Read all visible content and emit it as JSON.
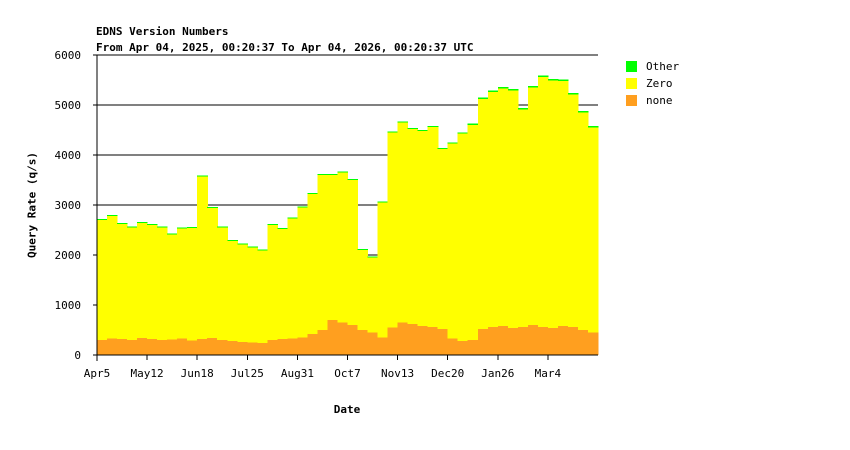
{
  "chart_data": {
    "type": "area",
    "title": "EDNS Version Numbers",
    "subtitle": "From Apr 04, 2025, 00:20:37 To Apr 04, 2026, 00:20:37 UTC",
    "xlabel": "Date",
    "ylabel": "Query Rate (q/s)",
    "ylim": [
      0,
      6000
    ],
    "yticks": [
      0,
      1000,
      2000,
      3000,
      4000,
      5000,
      6000
    ],
    "xticks": [
      "Apr5",
      "May12",
      "Jun18",
      "Jul25",
      "Aug31",
      "Oct7",
      "Nov13",
      "Dec20",
      "Jan26",
      "Mar4"
    ],
    "grid": "horizontal",
    "stacked": true,
    "legend_position": "right",
    "x": [
      "Apr5",
      "Apr12",
      "Apr19",
      "Apr26",
      "May3",
      "May12",
      "May19",
      "May26",
      "Jun2",
      "Jun9",
      "Jun18",
      "Jun25",
      "Jul2",
      "Jul9",
      "Jul16",
      "Jul25",
      "Aug1",
      "Aug8",
      "Aug15",
      "Aug22",
      "Aug31",
      "Sep7",
      "Sep14",
      "Sep21",
      "Sep28",
      "Oct7",
      "Oct14",
      "Oct21",
      "Oct28",
      "Nov4",
      "Nov13",
      "Nov20",
      "Nov27",
      "Dec4",
      "Dec11",
      "Dec20",
      "Dec27",
      "Jan3",
      "Jan10",
      "Jan17",
      "Jan26",
      "Feb2",
      "Feb9",
      "Feb16",
      "Feb23",
      "Mar4",
      "Mar11",
      "Mar18",
      "Mar25",
      "Apr1"
    ],
    "series": [
      {
        "name": "none",
        "color": "#ff9f1f",
        "values": [
          300,
          330,
          320,
          300,
          340,
          320,
          300,
          310,
          330,
          290,
          320,
          340,
          300,
          280,
          260,
          250,
          240,
          300,
          320,
          330,
          350,
          420,
          500,
          700,
          650,
          600,
          500,
          450,
          350,
          550,
          650,
          620,
          580,
          560,
          520,
          330,
          280,
          300,
          520,
          560,
          580,
          540,
          560,
          600,
          560,
          540,
          580,
          560,
          500,
          450
        ]
      },
      {
        "name": "Zero",
        "color": "#ffff00",
        "values": [
          2400,
          2450,
          2300,
          2250,
          2300,
          2280,
          2250,
          2100,
          2200,
          2250,
          3250,
          2600,
          2250,
          2000,
          1950,
          1900,
          1850,
          2300,
          2200,
          2400,
          2600,
          2800,
          3100,
          2900,
          3000,
          2900,
          1600,
          1500,
          2700,
          3900,
          4000,
          3900,
          3900,
          4000,
          3600,
          3900,
          4150,
          4300,
          4600,
          4700,
          4750,
          4750,
          4350,
          4750,
          5000,
          4950,
          4900,
          4650,
          4350,
          4100
        ]
      },
      {
        "name": "Other",
        "color": "#00ff00",
        "values": [
          20,
          20,
          20,
          20,
          20,
          20,
          20,
          20,
          20,
          20,
          20,
          20,
          20,
          20,
          20,
          20,
          20,
          20,
          20,
          20,
          20,
          20,
          20,
          20,
          20,
          20,
          20,
          20,
          20,
          25,
          25,
          25,
          25,
          25,
          25,
          25,
          25,
          30,
          30,
          30,
          30,
          30,
          30,
          30,
          30,
          30,
          30,
          30,
          30,
          30
        ]
      }
    ]
  }
}
